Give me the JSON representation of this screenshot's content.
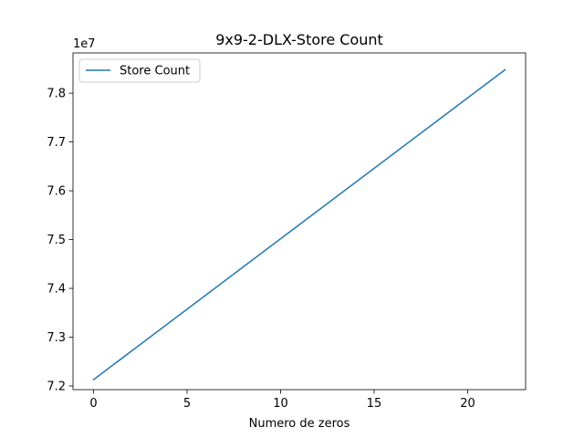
{
  "chart_data": {
    "type": "line",
    "title": "9x9-2-DLX-Store Count",
    "xlabel": "Numero de zeros",
    "ylabel": "",
    "y_offset_label": "1e7",
    "y_scale": 10000000,
    "xlim": [
      -1.1,
      23.1
    ],
    "ylim": [
      71925000,
      78825000
    ],
    "x_ticks": [
      0,
      5,
      10,
      15,
      20
    ],
    "y_ticks": [
      72000000,
      73000000,
      74000000,
      75000000,
      76000000,
      77000000,
      78000000
    ],
    "y_tick_labels": [
      "7.2",
      "7.3",
      "7.4",
      "7.5",
      "7.6",
      "7.7",
      "7.8"
    ],
    "grid": false,
    "legend_position": "upper-left",
    "series": [
      {
        "name": "Store Count",
        "color": "#1f77b4",
        "x": [
          0,
          22
        ],
        "y": [
          72130000,
          78480000
        ]
      }
    ]
  }
}
